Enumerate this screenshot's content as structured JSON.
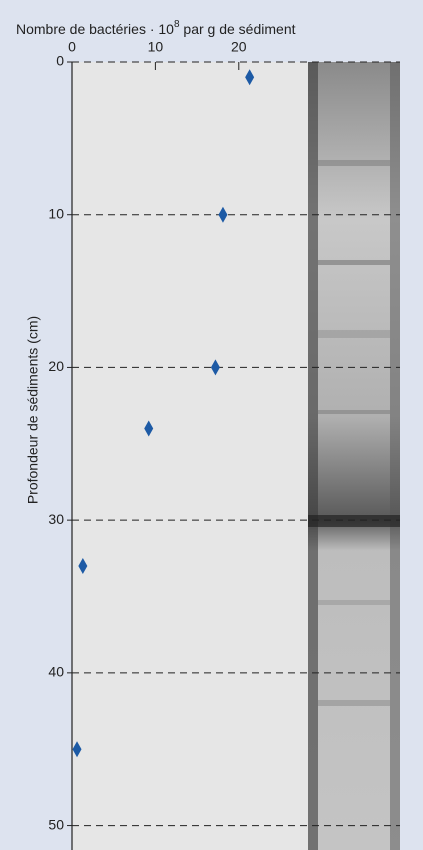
{
  "chart_data": {
    "type": "scatter",
    "title": "Nombre de bactéries · 10",
    "title_exponent": "8",
    "title_rest": " par g de sédiment",
    "y_label": "Profondeur de sédiments (cm)",
    "x": [
      21.3,
      18.1,
      17.2,
      9.2,
      1.3,
      0.6
    ],
    "values": [
      1,
      10,
      20,
      24,
      33,
      45
    ],
    "color": "#1d5aa5",
    "xlim": [
      0,
      28.3
    ],
    "xticks": [
      0,
      10,
      20
    ],
    "ylim": [
      0,
      51.6
    ],
    "yticks": [
      0,
      10,
      20,
      30,
      40,
      50
    ],
    "y_inverted": true,
    "grid": true
  }
}
